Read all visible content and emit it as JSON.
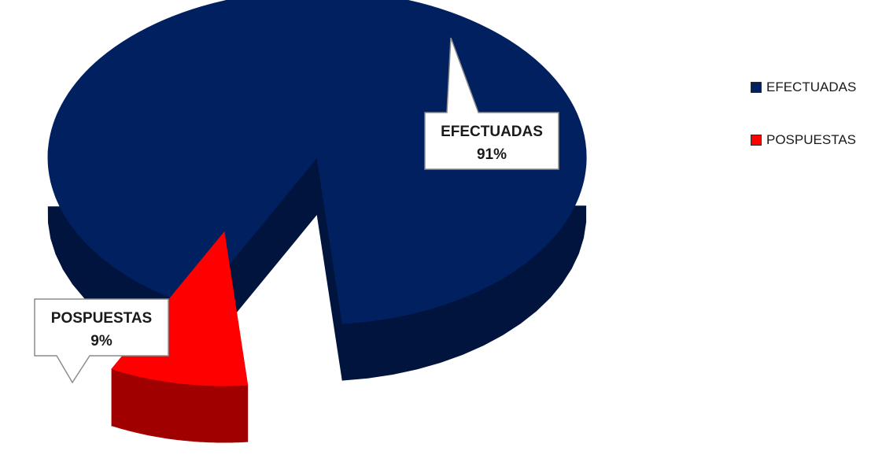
{
  "chart_data": {
    "type": "pie",
    "style": "3d-exploded",
    "slices": [
      {
        "label": "EFECTUADAS",
        "value": 91,
        "display": "91%",
        "color": "#002060",
        "side_color": "#00143d"
      },
      {
        "label": "POSPUESTAS",
        "value": 9,
        "display": "9%",
        "color": "#ff0000",
        "side_color": "#a00000"
      }
    ],
    "legend": {
      "position": "right",
      "entries": [
        {
          "label": "EFECTUADAS",
          "color": "#002060"
        },
        {
          "label": "POSPUESTAS",
          "color": "#ff0000"
        }
      ]
    }
  }
}
